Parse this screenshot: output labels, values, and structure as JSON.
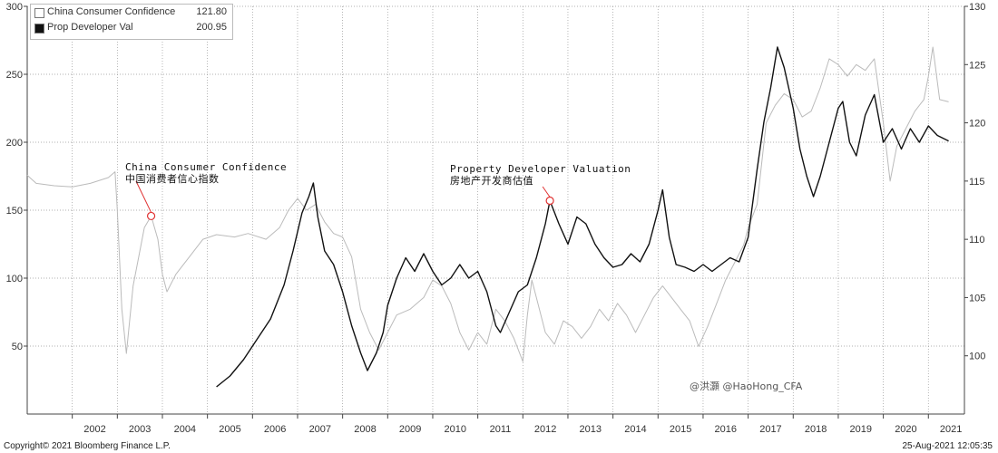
{
  "legend": {
    "items": [
      {
        "label": "China Consumer Confidence",
        "value": "121.80",
        "swatch": "#ffffff"
      },
      {
        "label": "Prop Developer Val",
        "value": "200.95",
        "swatch": "#111111"
      }
    ]
  },
  "annotations": {
    "consumer": {
      "line1": "China Consumer Confidence",
      "line2": "中国消费者信心指数",
      "point_year": 2003.75,
      "point_value": 112.0
    },
    "property": {
      "line1": "Property Developer Valuation",
      "line2": "房地产开发商估值",
      "point_year": 2012.6,
      "point_value": 157
    }
  },
  "watermark": "@洪灝 @HaoHong_CFA",
  "footer": {
    "left": "Copyright© 2021 Bloomberg Finance L.P.",
    "right": "25-Aug-2021 12:05:35"
  },
  "chart_data": {
    "type": "line",
    "x_ticks": [
      "2002",
      "2003",
      "2004",
      "2005",
      "2006",
      "2007",
      "2008",
      "2009",
      "2010",
      "2011",
      "2012",
      "2013",
      "2014",
      "2015",
      "2016",
      "2017",
      "2018",
      "2019",
      "2020",
      "2021"
    ],
    "xlim": [
      2001.0,
      2021.8
    ],
    "left_axis": {
      "ylim": [
        0,
        300
      ],
      "ticks": [
        "50",
        "100",
        "150",
        "200",
        "250",
        "300"
      ]
    },
    "right_axis": {
      "ylim": [
        95,
        130
      ],
      "ticks": [
        "100",
        "105",
        "110",
        "115",
        "120",
        "125",
        "130"
      ]
    },
    "grid": true,
    "legend_position": "top-left",
    "series": [
      {
        "name": "China Consumer Confidence",
        "axis": "right",
        "color": "#bbbbbb",
        "points": [
          [
            2001.0,
            115.5
          ],
          [
            2001.2,
            114.8
          ],
          [
            2001.6,
            114.6
          ],
          [
            2002.0,
            114.5
          ],
          [
            2002.4,
            114.8
          ],
          [
            2002.8,
            115.3
          ],
          [
            2002.95,
            115.8
          ],
          [
            2003.0,
            112.5
          ],
          [
            2003.1,
            104.0
          ],
          [
            2003.2,
            100.2
          ],
          [
            2003.35,
            106.0
          ],
          [
            2003.6,
            111.0
          ],
          [
            2003.75,
            112.0
          ],
          [
            2003.9,
            110.0
          ],
          [
            2004.0,
            107.0
          ],
          [
            2004.1,
            105.5
          ],
          [
            2004.3,
            107.0
          ],
          [
            2004.6,
            108.5
          ],
          [
            2004.9,
            110.0
          ],
          [
            2005.2,
            110.4
          ],
          [
            2005.6,
            110.2
          ],
          [
            2005.9,
            110.5
          ],
          [
            2006.3,
            110.0
          ],
          [
            2006.6,
            111.0
          ],
          [
            2006.8,
            112.5
          ],
          [
            2007.0,
            113.5
          ],
          [
            2007.2,
            112.5
          ],
          [
            2007.4,
            113.0
          ],
          [
            2007.6,
            111.5
          ],
          [
            2007.8,
            110.5
          ],
          [
            2008.0,
            110.2
          ],
          [
            2008.2,
            108.5
          ],
          [
            2008.4,
            104.0
          ],
          [
            2008.6,
            102.0
          ],
          [
            2008.8,
            100.5
          ],
          [
            2009.0,
            102.0
          ],
          [
            2009.2,
            103.5
          ],
          [
            2009.5,
            104.0
          ],
          [
            2009.8,
            105.0
          ],
          [
            2010.0,
            106.5
          ],
          [
            2010.2,
            106.0
          ],
          [
            2010.4,
            104.5
          ],
          [
            2010.6,
            102.0
          ],
          [
            2010.8,
            100.5
          ],
          [
            2011.0,
            102.0
          ],
          [
            2011.2,
            101.0
          ],
          [
            2011.4,
            104.0
          ],
          [
            2011.6,
            103.0
          ],
          [
            2011.8,
            101.5
          ],
          [
            2012.0,
            99.5
          ],
          [
            2012.1,
            103.5
          ],
          [
            2012.2,
            106.5
          ],
          [
            2012.3,
            105.0
          ],
          [
            2012.5,
            102.0
          ],
          [
            2012.7,
            101.0
          ],
          [
            2012.9,
            103.0
          ],
          [
            2013.1,
            102.5
          ],
          [
            2013.3,
            101.5
          ],
          [
            2013.5,
            102.5
          ],
          [
            2013.7,
            104.0
          ],
          [
            2013.9,
            103.0
          ],
          [
            2014.1,
            104.5
          ],
          [
            2014.3,
            103.5
          ],
          [
            2014.5,
            102.0
          ],
          [
            2014.7,
            103.5
          ],
          [
            2014.9,
            105.0
          ],
          [
            2015.1,
            106.0
          ],
          [
            2015.3,
            105.0
          ],
          [
            2015.5,
            104.0
          ],
          [
            2015.7,
            103.0
          ],
          [
            2015.9,
            100.8
          ],
          [
            2016.1,
            102.5
          ],
          [
            2016.3,
            104.5
          ],
          [
            2016.5,
            106.5
          ],
          [
            2016.7,
            108.0
          ],
          [
            2016.9,
            109.5
          ],
          [
            2017.0,
            111.0
          ],
          [
            2017.2,
            113.0
          ],
          [
            2017.4,
            120.0
          ],
          [
            2017.6,
            121.5
          ],
          [
            2017.8,
            122.5
          ],
          [
            2018.0,
            122.0
          ],
          [
            2018.2,
            120.5
          ],
          [
            2018.4,
            121.0
          ],
          [
            2018.6,
            123.0
          ],
          [
            2018.8,
            125.5
          ],
          [
            2019.0,
            125.0
          ],
          [
            2019.2,
            124.0
          ],
          [
            2019.4,
            125.0
          ],
          [
            2019.6,
            124.5
          ],
          [
            2019.8,
            125.5
          ],
          [
            2020.0,
            120.0
          ],
          [
            2020.15,
            115.0
          ],
          [
            2020.3,
            118.0
          ],
          [
            2020.5,
            119.5
          ],
          [
            2020.7,
            121.0
          ],
          [
            2020.9,
            122.0
          ],
          [
            2021.0,
            124.0
          ],
          [
            2021.1,
            126.5
          ],
          [
            2021.25,
            122.0
          ],
          [
            2021.45,
            121.8
          ]
        ]
      },
      {
        "name": "Prop Developer Val",
        "axis": "left",
        "color": "#111111",
        "points": [
          [
            2005.2,
            20
          ],
          [
            2005.5,
            28
          ],
          [
            2005.8,
            40
          ],
          [
            2006.1,
            55
          ],
          [
            2006.4,
            70
          ],
          [
            2006.7,
            95
          ],
          [
            2006.9,
            120
          ],
          [
            2007.1,
            148
          ],
          [
            2007.25,
            160
          ],
          [
            2007.35,
            170
          ],
          [
            2007.45,
            145
          ],
          [
            2007.6,
            120
          ],
          [
            2007.8,
            110
          ],
          [
            2008.0,
            90
          ],
          [
            2008.2,
            65
          ],
          [
            2008.4,
            45
          ],
          [
            2008.55,
            32
          ],
          [
            2008.75,
            45
          ],
          [
            2008.9,
            60
          ],
          [
            2009.0,
            80
          ],
          [
            2009.2,
            100
          ],
          [
            2009.4,
            115
          ],
          [
            2009.6,
            105
          ],
          [
            2009.8,
            118
          ],
          [
            2010.0,
            105
          ],
          [
            2010.2,
            95
          ],
          [
            2010.4,
            100
          ],
          [
            2010.6,
            110
          ],
          [
            2010.8,
            100
          ],
          [
            2011.0,
            105
          ],
          [
            2011.2,
            90
          ],
          [
            2011.4,
            65
          ],
          [
            2011.5,
            60
          ],
          [
            2011.7,
            75
          ],
          [
            2011.9,
            90
          ],
          [
            2012.1,
            95
          ],
          [
            2012.3,
            115
          ],
          [
            2012.5,
            140
          ],
          [
            2012.6,
            157
          ],
          [
            2012.8,
            140
          ],
          [
            2013.0,
            125
          ],
          [
            2013.2,
            145
          ],
          [
            2013.4,
            140
          ],
          [
            2013.6,
            125
          ],
          [
            2013.8,
            115
          ],
          [
            2014.0,
            108
          ],
          [
            2014.2,
            110
          ],
          [
            2014.4,
            118
          ],
          [
            2014.6,
            112
          ],
          [
            2014.8,
            125
          ],
          [
            2015.0,
            150
          ],
          [
            2015.1,
            165
          ],
          [
            2015.25,
            130
          ],
          [
            2015.4,
            110
          ],
          [
            2015.6,
            108
          ],
          [
            2015.8,
            105
          ],
          [
            2016.0,
            110
          ],
          [
            2016.2,
            105
          ],
          [
            2016.4,
            110
          ],
          [
            2016.6,
            115
          ],
          [
            2016.8,
            112
          ],
          [
            2017.0,
            130
          ],
          [
            2017.2,
            180
          ],
          [
            2017.35,
            215
          ],
          [
            2017.5,
            240
          ],
          [
            2017.65,
            270
          ],
          [
            2017.8,
            255
          ],
          [
            2018.0,
            225
          ],
          [
            2018.15,
            195
          ],
          [
            2018.3,
            175
          ],
          [
            2018.45,
            160
          ],
          [
            2018.6,
            175
          ],
          [
            2018.8,
            200
          ],
          [
            2019.0,
            225
          ],
          [
            2019.1,
            230
          ],
          [
            2019.25,
            200
          ],
          [
            2019.4,
            190
          ],
          [
            2019.6,
            220
          ],
          [
            2019.8,
            235
          ],
          [
            2020.0,
            200
          ],
          [
            2020.2,
            210
          ],
          [
            2020.4,
            195
          ],
          [
            2020.6,
            210
          ],
          [
            2020.8,
            200
          ],
          [
            2021.0,
            212
          ],
          [
            2021.2,
            205
          ],
          [
            2021.45,
            200.95
          ]
        ]
      }
    ]
  }
}
